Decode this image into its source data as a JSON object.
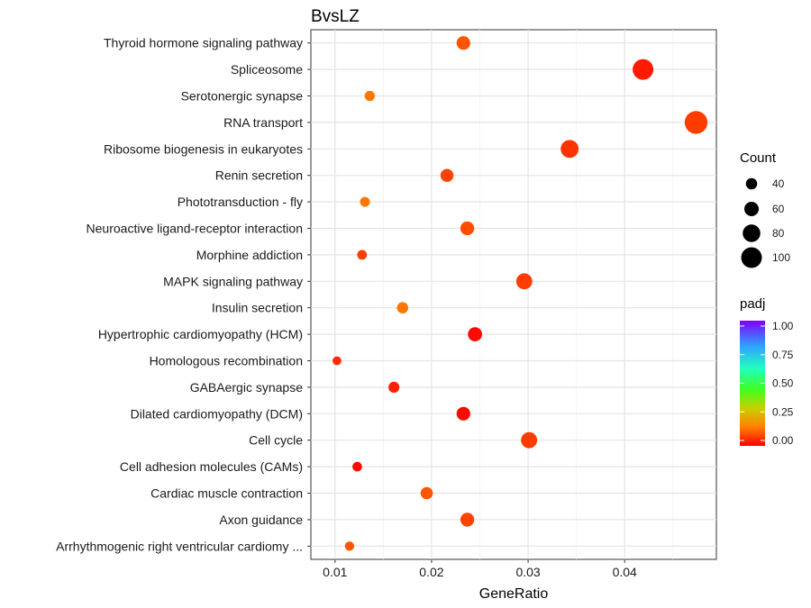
{
  "chart_data": {
    "type": "scatter",
    "title": "BvsLZ",
    "xlabel": "GeneRatio",
    "ylabel": "",
    "xlim": [
      0.0075,
      0.0495
    ],
    "xticks": [
      "0.01",
      "0.02",
      "0.03",
      "0.04"
    ],
    "xtick_values": [
      0.01,
      0.02,
      0.03,
      0.04
    ],
    "grid": true,
    "legend_position": "right",
    "categories": [
      "Thyroid hormone signaling pathway",
      "Spliceosome",
      "Serotonergic synapse",
      "RNA transport",
      "Ribosome biogenesis in eukaryotes",
      "Renin secretion",
      "Phototransduction - fly",
      "Neuroactive ligand-receptor interaction",
      "Morphine addiction",
      "MAPK signaling pathway",
      "Insulin secretion",
      "Hypertrophic cardiomyopathy (HCM)",
      "Homologous recombination",
      "GABAergic synapse",
      "Dilated cardiomyopathy (DCM)",
      "Cell cycle",
      "Cell adhesion molecules (CAMs)",
      "Cardiac muscle contraction",
      "Axon guidance",
      "Arrhythmogenic right ventricular cardiomy ..."
    ],
    "points": [
      {
        "x": 0.0233,
        "count": 55,
        "padj": 0.1
      },
      {
        "x": 0.0419,
        "count": 100,
        "padj": 0.03
      },
      {
        "x": 0.0136,
        "count": 33,
        "padj": 0.14
      },
      {
        "x": 0.0474,
        "count": 113,
        "padj": 0.07
      },
      {
        "x": 0.0343,
        "count": 82,
        "padj": 0.06
      },
      {
        "x": 0.0216,
        "count": 51,
        "padj": 0.08
      },
      {
        "x": 0.0131,
        "count": 31,
        "padj": 0.14
      },
      {
        "x": 0.0237,
        "count": 56,
        "padj": 0.09
      },
      {
        "x": 0.0128,
        "count": 30,
        "padj": 0.07
      },
      {
        "x": 0.0296,
        "count": 70,
        "padj": 0.07
      },
      {
        "x": 0.017,
        "count": 40,
        "padj": 0.14
      },
      {
        "x": 0.0245,
        "count": 58,
        "padj": 0.01
      },
      {
        "x": 0.0102,
        "count": 24,
        "padj": 0.05
      },
      {
        "x": 0.0161,
        "count": 38,
        "padj": 0.04
      },
      {
        "x": 0.0233,
        "count": 55,
        "padj": 0.01
      },
      {
        "x": 0.0301,
        "count": 71,
        "padj": 0.07
      },
      {
        "x": 0.0123,
        "count": 29,
        "padj": 0.01
      },
      {
        "x": 0.0195,
        "count": 46,
        "padj": 0.1
      },
      {
        "x": 0.0237,
        "count": 56,
        "padj": 0.08
      },
      {
        "x": 0.0115,
        "count": 27,
        "padj": 0.1
      }
    ],
    "size_legend": {
      "title": "Count",
      "values": [
        40,
        60,
        80,
        100
      ],
      "labels": [
        "40",
        "60",
        "80",
        "100"
      ]
    },
    "color_legend": {
      "title": "padj",
      "range": [
        0,
        1
      ],
      "labels": [
        "1.00",
        "0.75",
        "0.50",
        "0.25",
        "0.00"
      ],
      "values": [
        1.0,
        0.75,
        0.5,
        0.25,
        0.0
      ]
    }
  }
}
